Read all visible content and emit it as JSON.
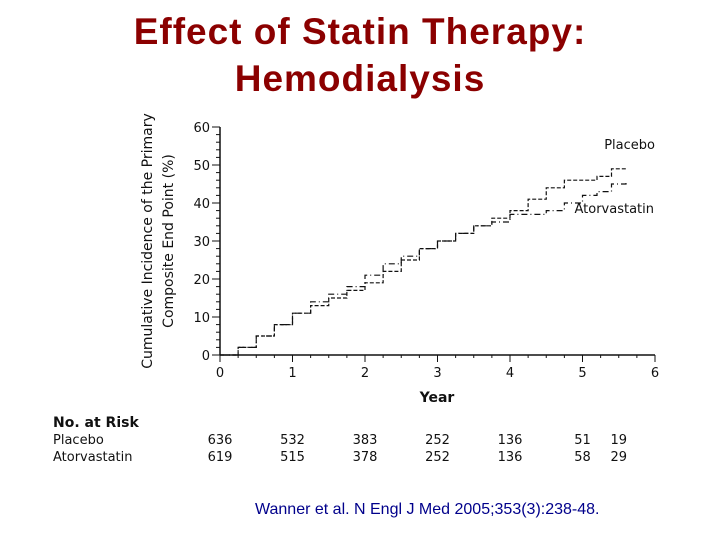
{
  "slide": {
    "title_line_1": "Effect of Statin Therapy:",
    "title_line_2": "Hemodialysis",
    "title_color": "#8b0000",
    "citation": "Wanner et al. N Engl J Med 2005;353(3):238-48.",
    "citation_color": "#00008b"
  },
  "chart_data": {
    "type": "line",
    "title": "",
    "xlabel": "Year",
    "ylabel_line_1": "Cumulative Incidence of the Primary",
    "ylabel_line_2": "Composite End Point (%)",
    "xlim": [
      0,
      6
    ],
    "ylim": [
      0,
      60
    ],
    "x_ticks": [
      0,
      1,
      2,
      3,
      4,
      5,
      6
    ],
    "y_ticks": [
      0,
      10,
      20,
      30,
      40,
      50,
      60
    ],
    "grid": false,
    "series": [
      {
        "name": "Placebo",
        "style": "dashed",
        "x": [
          0,
          0.25,
          0.5,
          0.75,
          1.0,
          1.25,
          1.5,
          1.75,
          2.0,
          2.25,
          2.5,
          2.75,
          3.0,
          3.25,
          3.5,
          3.75,
          4.0,
          4.25,
          4.5,
          4.75,
          5.0,
          5.2,
          5.4,
          5.6
        ],
        "y": [
          0,
          2,
          5,
          8,
          11,
          13,
          15,
          17,
          19,
          22,
          25,
          28,
          30,
          32,
          34,
          36,
          38,
          41,
          44,
          46,
          46,
          47,
          49,
          49
        ]
      },
      {
        "name": "Atorvastatin",
        "style": "dash-dot",
        "x": [
          0,
          0.25,
          0.5,
          0.75,
          1.0,
          1.25,
          1.5,
          1.75,
          2.0,
          2.25,
          2.5,
          2.75,
          3.0,
          3.25,
          3.5,
          3.75,
          4.0,
          4.25,
          4.5,
          4.75,
          5.0,
          5.2,
          5.4,
          5.6
        ],
        "y": [
          0,
          2,
          5,
          8,
          11,
          14,
          16,
          18,
          21,
          24,
          26,
          28,
          30,
          32,
          34,
          35,
          37,
          37,
          38,
          40,
          42,
          43,
          45,
          46
        ]
      }
    ],
    "legend": "inline labels near line ends (Placebo above, Atorvastatin below)",
    "risk_table": {
      "title": "No. at Risk",
      "x": [
        0,
        1,
        2,
        3,
        4,
        5,
        5.5
      ],
      "rows": [
        {
          "label": "Placebo",
          "values": [
            "636",
            "532",
            "383",
            "252",
            "136",
            "51",
            "19"
          ]
        },
        {
          "label": "Atorvastatin",
          "values": [
            "619",
            "515",
            "378",
            "252",
            "136",
            "58",
            "29"
          ]
        }
      ]
    }
  }
}
